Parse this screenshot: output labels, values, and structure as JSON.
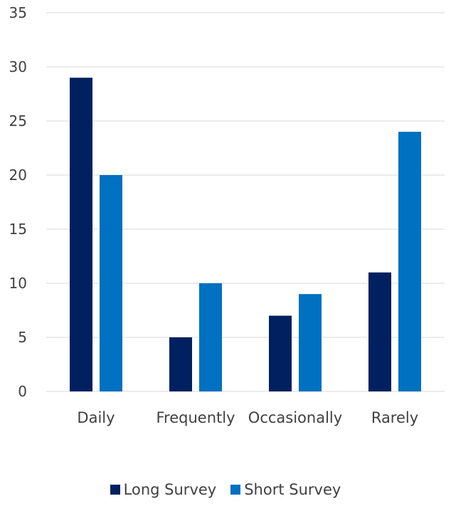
{
  "chart_data": {
    "type": "bar",
    "categories": [
      "Daily",
      "Frequently",
      "Occasionally",
      "Rarely"
    ],
    "series": [
      {
        "name": "Long Survey",
        "color": "#002060",
        "values": [
          29,
          5,
          7,
          11
        ]
      },
      {
        "name": "Short Survey",
        "color": "#0070C0",
        "values": [
          20,
          10,
          9,
          24
        ]
      }
    ],
    "yticks": [
      0,
      5,
      10,
      15,
      20,
      25,
      30,
      35
    ],
    "ylim": [
      0,
      35
    ],
    "grid": true,
    "legend_position": "bottom",
    "gridline_color": "#D9D9D9"
  }
}
